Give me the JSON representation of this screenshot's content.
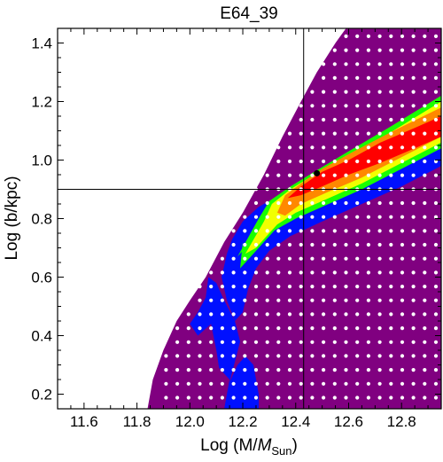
{
  "chart_data": {
    "type": "heatmap",
    "title": "E64_39",
    "xlabel": {
      "prefix": "Log (M/",
      "italic": "M",
      "subscript": "Sun",
      "suffix": ")"
    },
    "ylabel": "Log (b/kpc)",
    "xlim": [
      11.5,
      12.95
    ],
    "ylim": [
      0.15,
      1.45
    ],
    "xticks": [
      11.6,
      11.8,
      12.0,
      12.2,
      12.4,
      12.6,
      12.8
    ],
    "yticks": [
      0.2,
      0.4,
      0.6,
      0.8,
      1.0,
      1.2,
      1.4
    ],
    "xtick_labels": [
      "11.6",
      "11.8",
      "12.0",
      "12.2",
      "12.4",
      "12.6",
      "12.8"
    ],
    "ytick_labels": [
      "0.2",
      "0.4",
      "0.6",
      "0.8",
      "1.0",
      "1.2",
      "1.4"
    ],
    "reference_lines": {
      "x": 12.43,
      "y": 0.9
    },
    "best_fit_point": {
      "x": 12.48,
      "y": 0.955
    },
    "grid_points": {
      "x_start": 11.91,
      "x_step": 0.0425,
      "y_start": 0.188,
      "y_step": 0.0475
    },
    "allowed_region_boundary": [
      [
        11.84,
        0.15
      ],
      [
        11.86,
        0.25
      ],
      [
        11.9,
        0.35
      ],
      [
        11.95,
        0.45
      ],
      [
        12.0,
        0.52
      ],
      [
        12.06,
        0.6
      ],
      [
        12.13,
        0.72
      ],
      [
        12.2,
        0.82
      ],
      [
        12.28,
        0.95
      ],
      [
        12.35,
        1.08
      ],
      [
        12.42,
        1.2
      ],
      [
        12.48,
        1.3
      ],
      [
        12.55,
        1.4
      ],
      [
        12.59,
        1.45
      ],
      [
        12.95,
        1.45
      ],
      [
        12.95,
        0.15
      ]
    ],
    "contour_levels": [
      {
        "name": "blue",
        "color": "#0010ff",
        "polygon": [
          [
            12.16,
            0.73
          ],
          [
            12.2,
            0.79
          ],
          [
            12.26,
            0.84
          ],
          [
            12.34,
            0.88
          ],
          [
            12.45,
            0.93
          ],
          [
            12.6,
            1.0
          ],
          [
            12.75,
            1.07
          ],
          [
            12.95,
            1.17
          ],
          [
            12.95,
            0.98
          ],
          [
            12.8,
            0.91
          ],
          [
            12.65,
            0.85
          ],
          [
            12.5,
            0.79
          ],
          [
            12.38,
            0.74
          ],
          [
            12.3,
            0.69
          ],
          [
            12.25,
            0.63
          ],
          [
            12.22,
            0.56
          ],
          [
            12.2,
            0.48
          ],
          [
            12.17,
            0.45
          ],
          [
            12.13,
            0.52
          ],
          [
            12.1,
            0.58
          ],
          [
            12.07,
            0.6
          ],
          [
            12.06,
            0.53
          ],
          [
            12.03,
            0.48
          ],
          [
            12.0,
            0.44
          ],
          [
            12.03,
            0.4
          ],
          [
            12.08,
            0.44
          ],
          [
            12.1,
            0.35
          ],
          [
            12.11,
            0.29
          ],
          [
            12.15,
            0.25
          ],
          [
            12.14,
            0.2
          ],
          [
            12.13,
            0.15
          ],
          [
            12.26,
            0.15
          ],
          [
            12.26,
            0.2
          ],
          [
            12.25,
            0.25
          ],
          [
            12.24,
            0.3
          ],
          [
            12.21,
            0.33
          ],
          [
            12.18,
            0.3
          ],
          [
            12.15,
            0.24
          ],
          [
            12.19,
            0.38
          ],
          [
            12.17,
            0.45
          ],
          [
            12.14,
            0.52
          ],
          [
            12.12,
            0.6
          ],
          [
            12.14,
            0.68
          ]
        ]
      },
      {
        "name": "green",
        "color": "#19ff00",
        "polygon": [
          [
            12.26,
            0.8
          ],
          [
            12.3,
            0.86
          ],
          [
            12.38,
            0.91
          ],
          [
            12.47,
            0.96
          ],
          [
            12.6,
            1.03
          ],
          [
            12.75,
            1.11
          ],
          [
            12.95,
            1.22
          ],
          [
            12.95,
            1.04
          ],
          [
            12.8,
            0.97
          ],
          [
            12.65,
            0.9
          ],
          [
            12.5,
            0.84
          ],
          [
            12.4,
            0.8
          ],
          [
            12.32,
            0.76
          ],
          [
            12.28,
            0.72
          ],
          [
            12.24,
            0.68
          ],
          [
            12.19,
            0.63
          ],
          [
            12.2,
            0.72
          ],
          [
            12.2,
            0.74
          ],
          [
            12.2,
            0.69
          ],
          [
            12.18,
            0.67
          ]
        ]
      },
      {
        "name": "yellow",
        "color": "#f2ff00",
        "polygon": [
          [
            12.28,
            0.79
          ],
          [
            12.31,
            0.85
          ],
          [
            12.38,
            0.9
          ],
          [
            12.47,
            0.95
          ],
          [
            12.6,
            1.01
          ],
          [
            12.75,
            1.09
          ],
          [
            12.95,
            1.2
          ],
          [
            12.95,
            1.06
          ],
          [
            12.8,
            0.99
          ],
          [
            12.65,
            0.92
          ],
          [
            12.5,
            0.86
          ],
          [
            12.4,
            0.82
          ],
          [
            12.33,
            0.78
          ],
          [
            12.29,
            0.74
          ],
          [
            12.25,
            0.7
          ],
          [
            12.21,
            0.68
          ]
        ]
      },
      {
        "name": "orange",
        "color": "#ff8800",
        "polygon": [
          [
            12.33,
            0.82
          ],
          [
            12.36,
            0.88
          ],
          [
            12.42,
            0.92
          ],
          [
            12.5,
            0.97
          ],
          [
            12.62,
            1.03
          ],
          [
            12.77,
            1.1
          ],
          [
            12.95,
            1.18
          ],
          [
            12.95,
            1.08
          ],
          [
            12.8,
            1.01
          ],
          [
            12.65,
            0.94
          ],
          [
            12.52,
            0.89
          ],
          [
            12.42,
            0.85
          ],
          [
            12.36,
            0.81
          ]
        ]
      },
      {
        "name": "red",
        "color": "#ff0000",
        "polygon": [
          [
            12.37,
            0.87
          ],
          [
            12.42,
            0.91
          ],
          [
            12.5,
            0.96
          ],
          [
            12.6,
            1.0
          ],
          [
            12.72,
            1.06
          ],
          [
            12.85,
            1.11
          ],
          [
            12.95,
            1.15
          ],
          [
            12.95,
            1.08
          ],
          [
            12.85,
            1.04
          ],
          [
            12.72,
            0.99
          ],
          [
            12.6,
            0.95
          ],
          [
            12.5,
            0.91
          ],
          [
            12.42,
            0.88
          ]
        ]
      }
    ],
    "colors": {
      "background_region": "#800080",
      "grid_point": "#ffffff",
      "best_fit": "#000000",
      "frame": "#000000"
    }
  }
}
